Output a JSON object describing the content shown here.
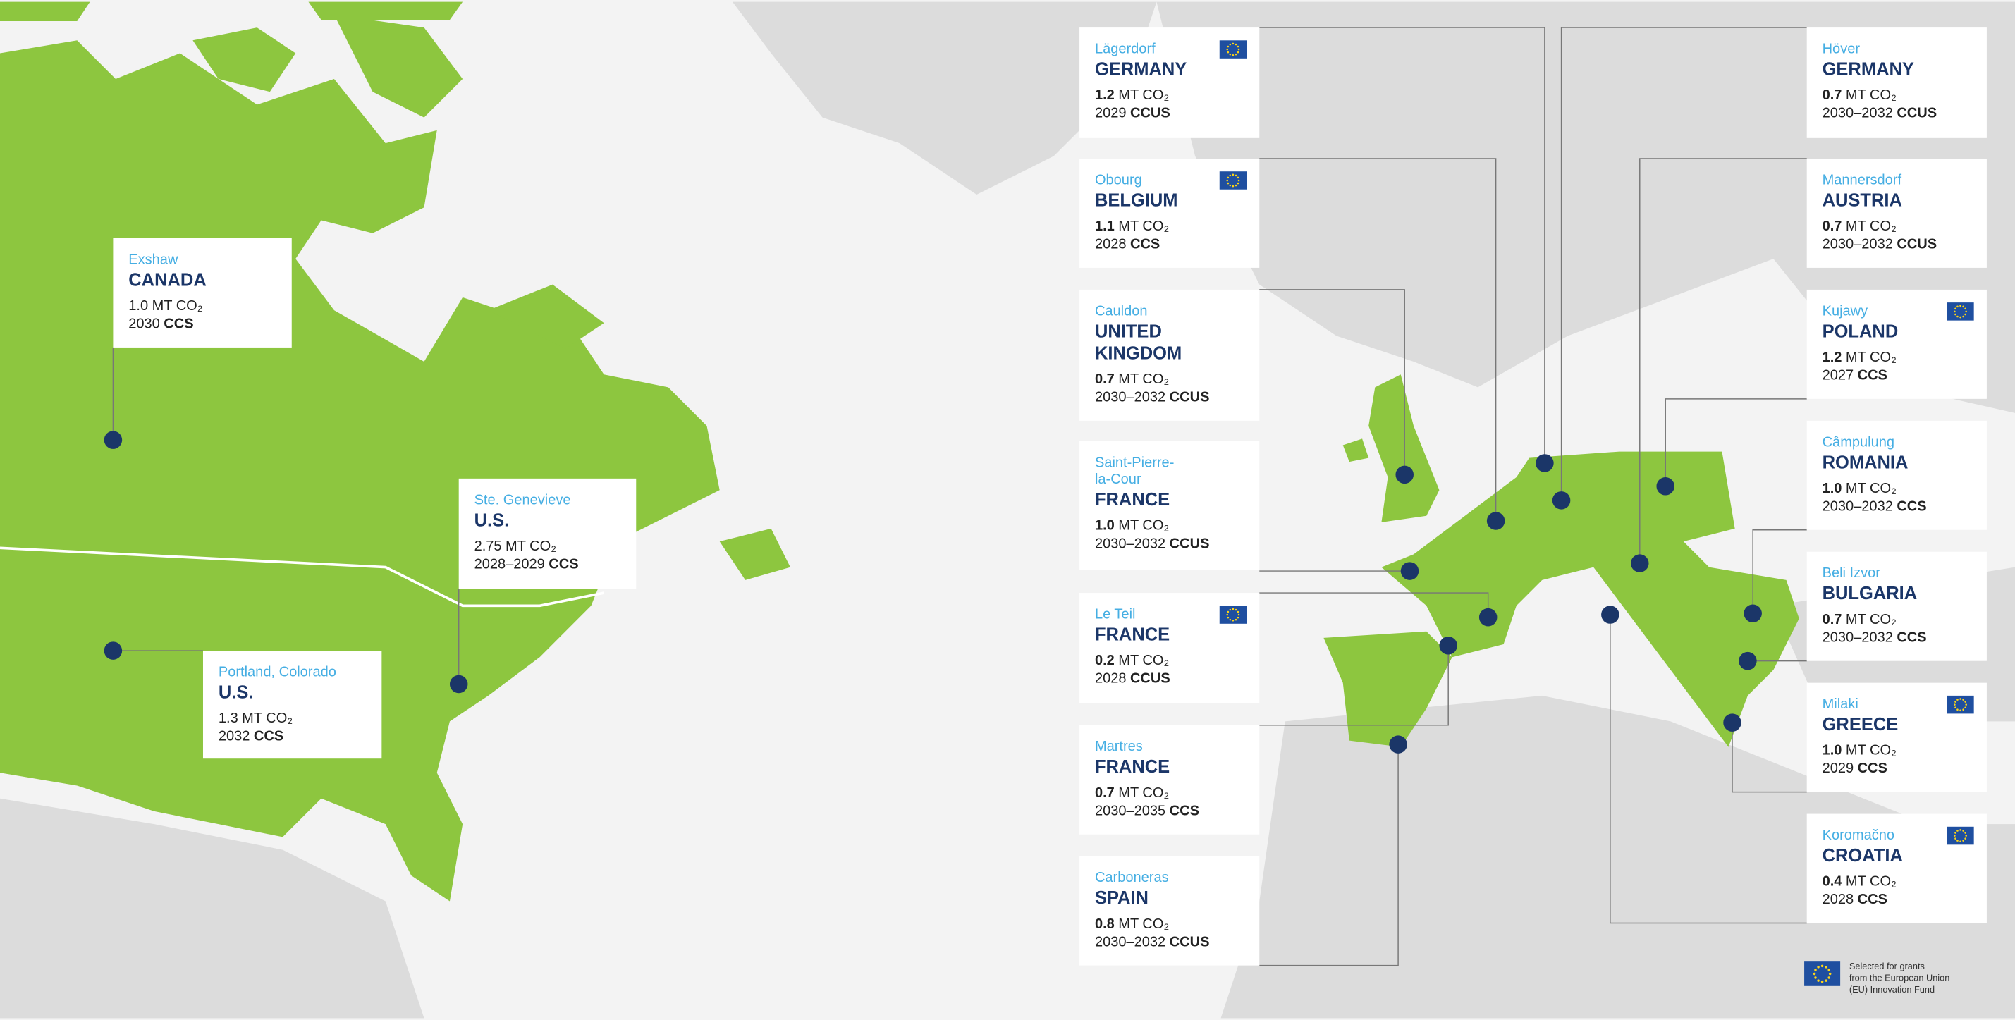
{
  "north_america": [
    {
      "site": [
        "Exshaw"
      ],
      "country": [
        "CANADA"
      ],
      "amount": "1.0",
      "unit": "MT CO₂",
      "years": "2030",
      "tech": "CCS",
      "eu_grant": false
    },
    {
      "site": [
        "Ste. Genevieve"
      ],
      "country": [
        "U.S."
      ],
      "amount": "2.75",
      "unit": "MT CO₂",
      "years": "2028–2029",
      "tech": "CCS",
      "eu_grant": false
    },
    {
      "site": [
        "Portland, Colorado"
      ],
      "country": [
        "U.S."
      ],
      "amount": "1.3",
      "unit": "MT CO₂",
      "years": "2032",
      "tech": "CCS",
      "eu_grant": false
    }
  ],
  "europe": [
    {
      "site": [
        "Lägerdorf"
      ],
      "country": [
        "GERMANY"
      ],
      "amount": "1.2",
      "unit": "MT CO₂",
      "years": "2029",
      "tech": "CCUS",
      "eu_grant": true
    },
    {
      "site": [
        "Obourg"
      ],
      "country": [
        "BELGIUM"
      ],
      "amount": "1.1",
      "unit": "MT CO₂",
      "years": "2028",
      "tech": "CCS",
      "eu_grant": true
    },
    {
      "site": [
        "Cauldon"
      ],
      "country": [
        "UNITED",
        "KINGDOM"
      ],
      "amount": "0.7",
      "unit": "MT CO₂",
      "years": "2030–2032",
      "tech": "CCUS",
      "eu_grant": false
    },
    {
      "site": [
        "Saint-Pierre-",
        "la-Cour"
      ],
      "country": [
        "FRANCE"
      ],
      "amount": "1.0",
      "unit": "MT CO₂",
      "years": "2030–2032",
      "tech": "CCUS",
      "eu_grant": false
    },
    {
      "site": [
        "Le Teil"
      ],
      "country": [
        "FRANCE"
      ],
      "amount": "0.2",
      "unit": "MT CO₂",
      "years": "2028",
      "tech": "CCUS",
      "eu_grant": true
    },
    {
      "site": [
        "Martres"
      ],
      "country": [
        "FRANCE"
      ],
      "amount": "0.7",
      "unit": "MT CO₂",
      "years": "2030–2035",
      "tech": "CCS",
      "eu_grant": false
    },
    {
      "site": [
        "Carboneras"
      ],
      "country": [
        "SPAIN"
      ],
      "amount": "0.8",
      "unit": "MT CO₂",
      "years": "2030–2032",
      "tech": "CCUS",
      "eu_grant": false
    },
    {
      "site": [
        "Höver"
      ],
      "country": [
        "GERMANY"
      ],
      "amount": "0.7",
      "unit": "MT CO₂",
      "years": "2030–2032",
      "tech": "CCUS",
      "eu_grant": false
    },
    {
      "site": [
        "Mannersdorf"
      ],
      "country": [
        "AUSTRIA"
      ],
      "amount": "0.7",
      "unit": "MT CO₂",
      "years": "2030–2032",
      "tech": "CCUS",
      "eu_grant": false
    },
    {
      "site": [
        "Kujawy"
      ],
      "country": [
        "POLAND"
      ],
      "amount": "1.2",
      "unit": "MT CO₂",
      "years": "2027",
      "tech": "CCS",
      "eu_grant": true
    },
    {
      "site": [
        "Câmpulung"
      ],
      "country": [
        "ROMANIA"
      ],
      "amount": "1.0",
      "unit": "MT CO₂",
      "years": "2030–2032",
      "tech": "CCS",
      "eu_grant": false
    },
    {
      "site": [
        "Beli Izvor"
      ],
      "country": [
        "BULGARIA"
      ],
      "amount": "0.7",
      "unit": "MT CO₂",
      "years": "2030–2032",
      "tech": "CCS",
      "eu_grant": false
    },
    {
      "site": [
        "Milaki"
      ],
      "country": [
        "GREECE"
      ],
      "amount": "1.0",
      "unit": "MT CO₂",
      "years": "2029",
      "tech": "CCS",
      "eu_grant": true
    },
    {
      "site": [
        "Koromačno"
      ],
      "country": [
        "CROATIA"
      ],
      "amount": "0.4",
      "unit": "MT CO₂",
      "years": "2028",
      "tech": "CCS",
      "eu_grant": true
    }
  ],
  "legend": {
    "text": [
      "Selected for grants",
      "from the European Union",
      "(EU) Innovation Fund"
    ]
  }
}
